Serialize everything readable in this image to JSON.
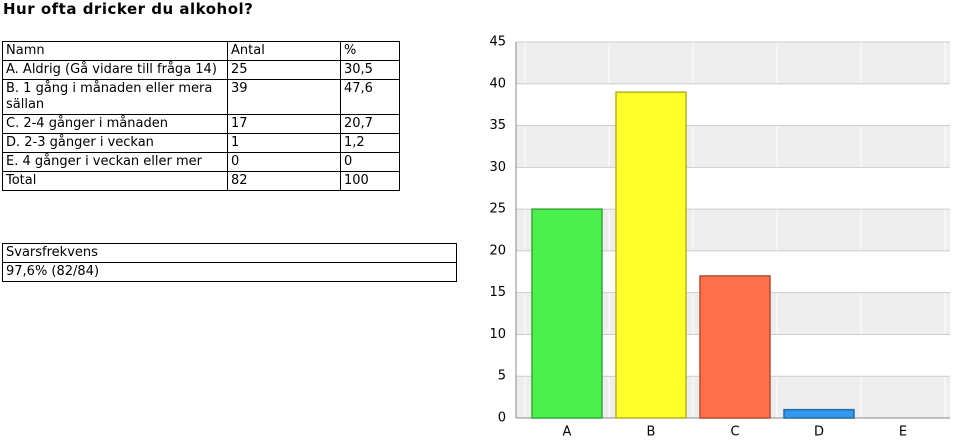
{
  "title": "Hur ofta dricker du alkohol?",
  "table": {
    "header": [
      "Namn",
      "Antal",
      "%"
    ],
    "rows": [
      [
        "A. Aldrig (Gå vidare till fråga 14)",
        "25",
        "30,5"
      ],
      [
        "B. 1 gång i månaden eller mera sällan",
        "39",
        "47,6"
      ],
      [
        "C. 2-4 gånger i månaden",
        "17",
        "20,7"
      ],
      [
        "D. 2-3 gånger i veckan",
        "1",
        "1,2"
      ],
      [
        "E. 4 gånger i veckan eller mer",
        "0",
        "0"
      ],
      [
        "Total",
        "82",
        "100"
      ]
    ]
  },
  "response_rate": {
    "header": "Svarsfrekvens",
    "value": "97,6% (82/84)"
  },
  "chart_data": {
    "type": "bar",
    "categories": [
      "A",
      "B",
      "C",
      "D",
      "E"
    ],
    "values": [
      25,
      39,
      17,
      1,
      0
    ],
    "colors": [
      "#4cf04c",
      "#ffff2a",
      "#ff7048",
      "#3399ee",
      "#999999"
    ],
    "ylim": [
      0,
      45
    ],
    "yticks": [
      0,
      5,
      10,
      15,
      20,
      25,
      30,
      35,
      40,
      45
    ],
    "grid": true
  }
}
